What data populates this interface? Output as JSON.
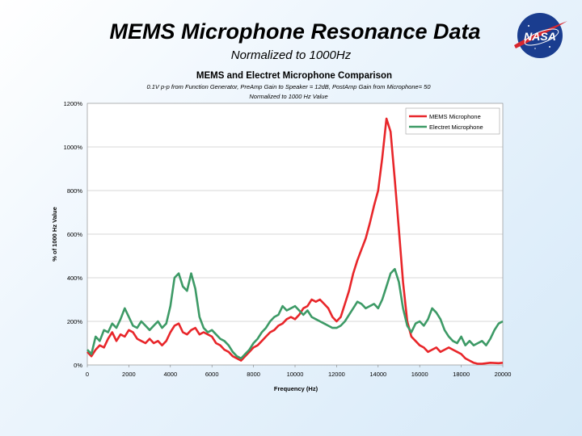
{
  "slide": {
    "title": "MEMS Microphone Resonance Data",
    "subtitle": "Normalized to 1000Hz"
  },
  "logo": {
    "text": "NASA",
    "icon": "nasa-meatball-logo"
  },
  "chart_data": {
    "type": "line",
    "title": "MEMS and Electret Microphone Comparison",
    "subtitle_lines": [
      "0.1V p-p from Function Generator, PreAmp Gain to Speaker = 12dB, PostAmp Gain from Microphone= 50",
      "Normalized to 1000 Hz Value"
    ],
    "xlabel": "Frequency (Hz)",
    "ylabel": "% of 1000 Hz Value",
    "xlim": [
      0,
      20000
    ],
    "ylim": [
      0,
      12
    ],
    "x_ticks": [
      "0",
      "2000",
      "4000",
      "6000",
      "8000",
      "10000",
      "12000",
      "14000",
      "16000",
      "18000",
      "20000"
    ],
    "y_ticks": [
      "0%",
      "200%",
      "400%",
      "600%",
      "800%",
      "1000%",
      "1200%"
    ],
    "grid": "horizontal",
    "legend_position": "top-right",
    "series": [
      {
        "name": "MEMS Microphone",
        "color": "#e8262a",
        "points": [
          [
            0,
            0.6
          ],
          [
            200,
            0.4
          ],
          [
            400,
            0.7
          ],
          [
            600,
            0.9
          ],
          [
            800,
            0.8
          ],
          [
            1000,
            1.2
          ],
          [
            1200,
            1.5
          ],
          [
            1400,
            1.1
          ],
          [
            1600,
            1.4
          ],
          [
            1800,
            1.3
          ],
          [
            2000,
            1.6
          ],
          [
            2200,
            1.5
          ],
          [
            2400,
            1.2
          ],
          [
            2600,
            1.1
          ],
          [
            2800,
            1.0
          ],
          [
            3000,
            1.2
          ],
          [
            3200,
            1.0
          ],
          [
            3400,
            1.1
          ],
          [
            3600,
            0.9
          ],
          [
            3800,
            1.1
          ],
          [
            4000,
            1.5
          ],
          [
            4200,
            1.8
          ],
          [
            4400,
            1.9
          ],
          [
            4600,
            1.5
          ],
          [
            4800,
            1.4
          ],
          [
            5000,
            1.6
          ],
          [
            5200,
            1.7
          ],
          [
            5400,
            1.4
          ],
          [
            5600,
            1.5
          ],
          [
            5800,
            1.4
          ],
          [
            6000,
            1.3
          ],
          [
            6200,
            1.0
          ],
          [
            6400,
            0.9
          ],
          [
            6600,
            0.7
          ],
          [
            6800,
            0.6
          ],
          [
            7000,
            0.4
          ],
          [
            7200,
            0.3
          ],
          [
            7400,
            0.2
          ],
          [
            7600,
            0.4
          ],
          [
            7800,
            0.6
          ],
          [
            8000,
            0.8
          ],
          [
            8200,
            0.9
          ],
          [
            8400,
            1.1
          ],
          [
            8600,
            1.3
          ],
          [
            8800,
            1.5
          ],
          [
            9000,
            1.6
          ],
          [
            9200,
            1.8
          ],
          [
            9400,
            1.9
          ],
          [
            9600,
            2.1
          ],
          [
            9800,
            2.2
          ],
          [
            10000,
            2.1
          ],
          [
            10200,
            2.3
          ],
          [
            10400,
            2.6
          ],
          [
            10600,
            2.7
          ],
          [
            10800,
            3.0
          ],
          [
            11000,
            2.9
          ],
          [
            11200,
            3.0
          ],
          [
            11400,
            2.8
          ],
          [
            11600,
            2.6
          ],
          [
            11800,
            2.2
          ],
          [
            12000,
            2.0
          ],
          [
            12200,
            2.2
          ],
          [
            12400,
            2.8
          ],
          [
            12600,
            3.4
          ],
          [
            12800,
            4.2
          ],
          [
            13000,
            4.8
          ],
          [
            13200,
            5.3
          ],
          [
            13400,
            5.8
          ],
          [
            13600,
            6.5
          ],
          [
            13800,
            7.3
          ],
          [
            14000,
            8.0
          ],
          [
            14200,
            9.5
          ],
          [
            14400,
            11.3
          ],
          [
            14600,
            10.7
          ],
          [
            14800,
            8.5
          ],
          [
            15000,
            6.2
          ],
          [
            15200,
            3.8
          ],
          [
            15400,
            2.0
          ],
          [
            15600,
            1.3
          ],
          [
            15800,
            1.1
          ],
          [
            16000,
            0.9
          ],
          [
            16200,
            0.8
          ],
          [
            16400,
            0.6
          ],
          [
            16600,
            0.7
          ],
          [
            16800,
            0.8
          ],
          [
            17000,
            0.6
          ],
          [
            17200,
            0.7
          ],
          [
            17400,
            0.8
          ],
          [
            17600,
            0.7
          ],
          [
            17800,
            0.6
          ],
          [
            18000,
            0.5
          ],
          [
            18200,
            0.3
          ],
          [
            18400,
            0.2
          ],
          [
            18600,
            0.1
          ],
          [
            18800,
            0.05
          ],
          [
            19000,
            0.05
          ],
          [
            19400,
            0.1
          ],
          [
            19800,
            0.08
          ],
          [
            20000,
            0.1
          ]
        ]
      },
      {
        "name": "Electret Microphone",
        "color": "#3d9a66",
        "points": [
          [
            0,
            0.7
          ],
          [
            200,
            0.5
          ],
          [
            400,
            1.3
          ],
          [
            600,
            1.1
          ],
          [
            800,
            1.6
          ],
          [
            1000,
            1.5
          ],
          [
            1200,
            1.9
          ],
          [
            1400,
            1.7
          ],
          [
            1600,
            2.1
          ],
          [
            1800,
            2.6
          ],
          [
            2000,
            2.2
          ],
          [
            2200,
            1.8
          ],
          [
            2400,
            1.7
          ],
          [
            2600,
            2.0
          ],
          [
            2800,
            1.8
          ],
          [
            3000,
            1.6
          ],
          [
            3200,
            1.8
          ],
          [
            3400,
            2.0
          ],
          [
            3600,
            1.7
          ],
          [
            3800,
            1.9
          ],
          [
            4000,
            2.7
          ],
          [
            4200,
            4.0
          ],
          [
            4400,
            4.2
          ],
          [
            4600,
            3.6
          ],
          [
            4800,
            3.4
          ],
          [
            5000,
            4.2
          ],
          [
            5200,
            3.5
          ],
          [
            5400,
            2.2
          ],
          [
            5600,
            1.7
          ],
          [
            5800,
            1.5
          ],
          [
            6000,
            1.6
          ],
          [
            6200,
            1.4
          ],
          [
            6400,
            1.2
          ],
          [
            6600,
            1.1
          ],
          [
            6800,
            0.9
          ],
          [
            7000,
            0.6
          ],
          [
            7200,
            0.4
          ],
          [
            7400,
            0.3
          ],
          [
            7600,
            0.5
          ],
          [
            7800,
            0.7
          ],
          [
            8000,
            1.0
          ],
          [
            8200,
            1.2
          ],
          [
            8400,
            1.5
          ],
          [
            8600,
            1.7
          ],
          [
            8800,
            2.0
          ],
          [
            9000,
            2.2
          ],
          [
            9200,
            2.3
          ],
          [
            9400,
            2.7
          ],
          [
            9600,
            2.5
          ],
          [
            9800,
            2.6
          ],
          [
            10000,
            2.7
          ],
          [
            10200,
            2.5
          ],
          [
            10400,
            2.3
          ],
          [
            10600,
            2.5
          ],
          [
            10800,
            2.2
          ],
          [
            11000,
            2.1
          ],
          [
            11200,
            2.0
          ],
          [
            11400,
            1.9
          ],
          [
            11600,
            1.8
          ],
          [
            11800,
            1.7
          ],
          [
            12000,
            1.7
          ],
          [
            12200,
            1.8
          ],
          [
            12400,
            2.0
          ],
          [
            12600,
            2.3
          ],
          [
            12800,
            2.6
          ],
          [
            13000,
            2.9
          ],
          [
            13200,
            2.8
          ],
          [
            13400,
            2.6
          ],
          [
            13600,
            2.7
          ],
          [
            13800,
            2.8
          ],
          [
            14000,
            2.6
          ],
          [
            14200,
            3.0
          ],
          [
            14400,
            3.6
          ],
          [
            14600,
            4.2
          ],
          [
            14800,
            4.4
          ],
          [
            15000,
            3.8
          ],
          [
            15200,
            2.6
          ],
          [
            15400,
            1.8
          ],
          [
            15600,
            1.5
          ],
          [
            15800,
            1.9
          ],
          [
            16000,
            2.0
          ],
          [
            16200,
            1.8
          ],
          [
            16400,
            2.1
          ],
          [
            16600,
            2.6
          ],
          [
            16800,
            2.4
          ],
          [
            17000,
            2.1
          ],
          [
            17200,
            1.6
          ],
          [
            17400,
            1.3
          ],
          [
            17600,
            1.1
          ],
          [
            17800,
            1.0
          ],
          [
            18000,
            1.3
          ],
          [
            18200,
            0.9
          ],
          [
            18400,
            1.1
          ],
          [
            18600,
            0.9
          ],
          [
            18800,
            1.0
          ],
          [
            19000,
            1.1
          ],
          [
            19200,
            0.9
          ],
          [
            19400,
            1.2
          ],
          [
            19600,
            1.6
          ],
          [
            19800,
            1.9
          ],
          [
            20000,
            2.0
          ]
        ]
      }
    ]
  }
}
